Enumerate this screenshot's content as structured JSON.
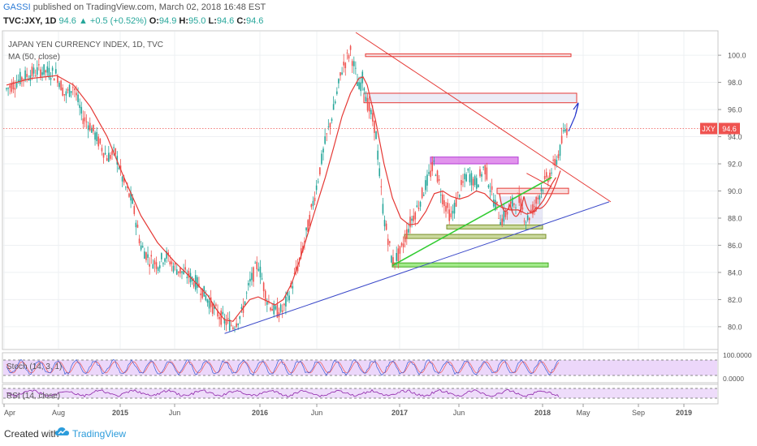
{
  "header": {
    "user": "GASSI",
    "published": "published on TradingView.com, March 02, 2018 16:48 EST",
    "symbol": "TVC:JXY, 1D",
    "last": "94.6",
    "change": "▲ +0.5 (+0.52%)",
    "o_label": "O:",
    "o_value": "94.9",
    "h_label": "H:",
    "h_value": "95.0",
    "l_label": "L:",
    "l_value": "94.6",
    "c_label": "C:",
    "c_value": "94.6"
  },
  "footer": {
    "created": "Created with",
    "brand": "TradingView"
  },
  "chart_data": [
    {
      "type": "line",
      "title": "JAPAN YEN CURRENCY INDEX, 1D, TVC",
      "subtitle": "MA (50, close)",
      "series": [
        {
          "name": "JXY",
          "values": [
            [
              0,
              97.5
            ],
            [
              4,
              98.4
            ],
            [
              8,
              98.9
            ],
            [
              12,
              98.6
            ],
            [
              14,
              97.0
            ],
            [
              16,
              97.8
            ],
            [
              18,
              95.5
            ],
            [
              20,
              94.8
            ],
            [
              22,
              93.6
            ],
            [
              24,
              92.5
            ],
            [
              26,
              92.8
            ],
            [
              28,
              90.5
            ],
            [
              30,
              89.2
            ],
            [
              32,
              86.0
            ],
            [
              34,
              85.0
            ],
            [
              36,
              84.6
            ],
            [
              38,
              85.3
            ],
            [
              40,
              84.4
            ],
            [
              42,
              84.0
            ],
            [
              44,
              83.6
            ],
            [
              46,
              83.0
            ],
            [
              48,
              82.0
            ],
            [
              50,
              81.1
            ],
            [
              52,
              80.4
            ],
            [
              54,
              80.1
            ],
            [
              56,
              80.9
            ],
            [
              58,
              83.2
            ],
            [
              60,
              84.7
            ],
            [
              62,
              82.1
            ],
            [
              64,
              81.1
            ],
            [
              66,
              81.2
            ],
            [
              68,
              83.0
            ],
            [
              70,
              85.0
            ],
            [
              72,
              87.5
            ],
            [
              74,
              90.5
            ],
            [
              76,
              93.6
            ],
            [
              78,
              96.0
            ],
            [
              80,
              99.0
            ],
            [
              82,
              100.3
            ],
            [
              83,
              99.0
            ],
            [
              84,
              97.5
            ],
            [
              85,
              98.4
            ],
            [
              86,
              96.5
            ],
            [
              88,
              94.5
            ],
            [
              89,
              91.0
            ],
            [
              90,
              88.0
            ],
            [
              91,
              86.5
            ],
            [
              92,
              84.7
            ],
            [
              94,
              85.5
            ],
            [
              96,
              87.5
            ],
            [
              98,
              88.8
            ],
            [
              100,
              90.5
            ],
            [
              102,
              92.0
            ],
            [
              104,
              89.5
            ],
            [
              106,
              88.0
            ],
            [
              108,
              90.0
            ],
            [
              110,
              91.3
            ],
            [
              112,
              90.5
            ],
            [
              114,
              91.8
            ],
            [
              116,
              89.5
            ],
            [
              118,
              87.8
            ],
            [
              120,
              88.8
            ],
            [
              122,
              89.5
            ],
            [
              124,
              87.8
            ],
            [
              126,
              89.0
            ],
            [
              128,
              90.5
            ],
            [
              130,
              91.5
            ],
            [
              132,
              93.0
            ],
            [
              133,
              94.5
            ],
            [
              134,
              94.6
            ]
          ]
        },
        {
          "name": "MA (50, close)",
          "values": [
            [
              0,
              97.8
            ],
            [
              6,
              98.3
            ],
            [
              12,
              98.5
            ],
            [
              16,
              97.8
            ],
            [
              20,
              96.2
            ],
            [
              24,
              94.0
            ],
            [
              28,
              91.0
            ],
            [
              32,
              88.2
            ],
            [
              36,
              86.2
            ],
            [
              40,
              84.8
            ],
            [
              44,
              83.6
            ],
            [
              48,
              82.3
            ],
            [
              50,
              81.3
            ],
            [
              52,
              80.5
            ],
            [
              54,
              80.4
            ],
            [
              56,
              81.2
            ],
            [
              58,
              82.0
            ],
            [
              60,
              82.2
            ],
            [
              62,
              81.9
            ],
            [
              64,
              81.6
            ],
            [
              66,
              82.0
            ],
            [
              68,
              83.2
            ],
            [
              70,
              85.0
            ],
            [
              72,
              87.0
            ],
            [
              74,
              89.0
            ],
            [
              76,
              91.0
            ],
            [
              78,
              93.2
            ],
            [
              80,
              95.5
            ],
            [
              82,
              97.2
            ],
            [
              84,
              98.3
            ],
            [
              85,
              98.4
            ],
            [
              86,
              97.8
            ],
            [
              88,
              95.2
            ],
            [
              90,
              92.0
            ],
            [
              92,
              89.5
            ],
            [
              94,
              88.0
            ],
            [
              96,
              87.5
            ],
            [
              98,
              87.6
            ],
            [
              100,
              88.5
            ],
            [
              102,
              89.8
            ],
            [
              104,
              90.0
            ],
            [
              106,
              89.6
            ],
            [
              108,
              89.4
            ],
            [
              110,
              89.6
            ],
            [
              112,
              90.0
            ],
            [
              114,
              89.8
            ],
            [
              116,
              89.2
            ],
            [
              118,
              88.8
            ],
            [
              120,
              88.6
            ],
            [
              122,
              88.6
            ],
            [
              124,
              88.3
            ],
            [
              126,
              88.5
            ],
            [
              128,
              89.3
            ],
            [
              130,
              90.5
            ],
            [
              131,
              91.0
            ]
          ]
        }
      ],
      "ylim": [
        78.5,
        101.5
      ],
      "y_ticks": [
        "100.0",
        "98.0",
        "96.0",
        "94.0",
        "92.0",
        "90.0",
        "88.0",
        "86.0",
        "84.0",
        "82.0",
        "80.0"
      ],
      "x_ticks": [
        "Apr",
        "Aug",
        "2015",
        "Jun",
        "2016",
        "Jun",
        "2017",
        "Jun",
        "2018",
        "May",
        "Sep",
        "2019"
      ],
      "last_price_label": {
        "symbol": "JXY",
        "value": "94.6"
      },
      "colors": {
        "up": "#26a69a",
        "down": "#ef5350",
        "ma": "#e53935",
        "trend": "#3b49c9",
        "neckline": "#33cc33",
        "projection": "#2233cc"
      }
    },
    {
      "type": "line",
      "title": "Stoch (14, 3, 1)",
      "ylim": [
        0,
        100
      ],
      "y_ticks": [
        "100.0000",
        "0.0000"
      ]
    },
    {
      "type": "line",
      "title": "RSI (14, close)"
    }
  ]
}
